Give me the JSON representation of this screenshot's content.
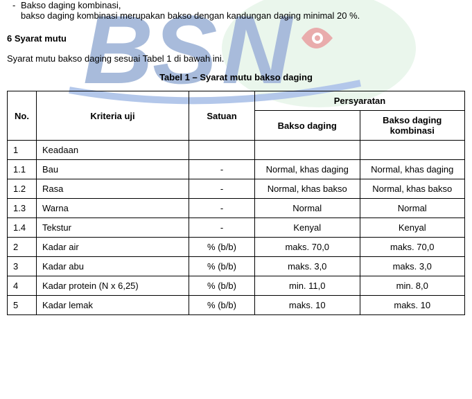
{
  "intro": {
    "bullet": "-",
    "line1": "Bakso daging kombinasi,",
    "line2": "bakso daging kombinasi merupakan bakso dengan kandungan daging minimal 20 %."
  },
  "heading": "6    Syarat mutu",
  "para": "Syarat mutu bakso daging sesuai Tabel 1 di bawah ini.",
  "table_title": "Tabel 1 – Syarat mutu bakso daging",
  "table": {
    "headers": {
      "no": "No.",
      "kriteria": "Kriteria uji",
      "satuan": "Satuan",
      "persyaratan": "Persyaratan",
      "p1": "Bakso daging",
      "p2": "Bakso daging kombinasi"
    },
    "rows": [
      {
        "no": "1",
        "kriteria": "Keadaan",
        "satuan": "",
        "p1": "",
        "p2": ""
      },
      {
        "no": "1.1",
        "kriteria": "Bau",
        "satuan": "-",
        "p1": "Normal, khas daging",
        "p2": "Normal, khas daging"
      },
      {
        "no": "1.2",
        "kriteria": "Rasa",
        "satuan": "-",
        "p1": "Normal, khas bakso",
        "p2": "Normal, khas bakso"
      },
      {
        "no": "1.3",
        "kriteria": "Warna",
        "satuan": "-",
        "p1": "Normal",
        "p2": "Normal"
      },
      {
        "no": "1.4",
        "kriteria": "Tekstur",
        "satuan": "-",
        "p1": "Kenyal",
        "p2": "Kenyal"
      },
      {
        "no": "2",
        "kriteria": "Kadar air",
        "satuan": "% (b/b)",
        "p1": "maks. 70,0",
        "p2": "maks. 70,0"
      },
      {
        "no": "3",
        "kriteria": "Kadar abu",
        "satuan": "% (b/b)",
        "p1": "maks. 3,0",
        "p2": "maks. 3,0"
      },
      {
        "no": "4",
        "kriteria": "Kadar protein (N x 6,25)",
        "satuan": "% (b/b)",
        "p1": "min. 11,0",
        "p2": "min. 8,0"
      },
      {
        "no": "5",
        "kriteria": "Kadar lemak",
        "satuan": "% (b/b)",
        "p1": "maks. 10",
        "p2": "maks. 10"
      }
    ]
  },
  "watermark": {
    "blue_dark": "#1c4fa1",
    "blue_light": "#3a6fc9",
    "red": "#c62828",
    "green": "#c9e8cf",
    "opacity": 0.38
  }
}
